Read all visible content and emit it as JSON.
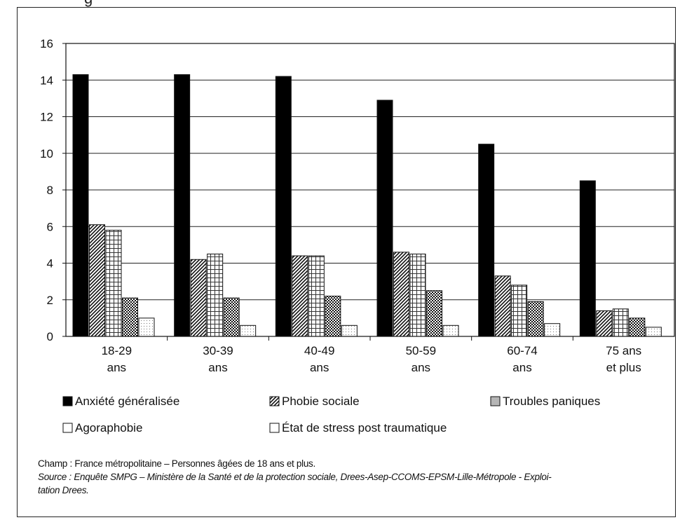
{
  "chart_data": {
    "type": "bar",
    "categories": [
      [
        "18-29",
        "ans"
      ],
      [
        "30-39",
        "ans"
      ],
      [
        "40-49",
        "ans"
      ],
      [
        "50-59",
        "ans"
      ],
      [
        "60-74",
        "ans"
      ],
      [
        "75 ans",
        "et plus"
      ]
    ],
    "series": [
      {
        "name": "Anxiété généralisée",
        "values": [
          14.3,
          14.3,
          14.2,
          12.9,
          10.5,
          8.5
        ],
        "pattern": "solid-black"
      },
      {
        "name": "Phobie sociale",
        "values": [
          6.1,
          4.2,
          4.4,
          4.6,
          3.3,
          1.4
        ],
        "pattern": "diagonal-hatch"
      },
      {
        "name": "Agoraphobie",
        "values": [
          5.8,
          4.5,
          4.4,
          4.5,
          2.8,
          1.5
        ],
        "pattern": "grid-lines"
      },
      {
        "name": "Troubles paniques",
        "values": [
          2.1,
          2.1,
          2.2,
          2.5,
          1.9,
          1.0
        ],
        "pattern": "checker"
      },
      {
        "name": "État de stress post traumatique",
        "values": [
          1.0,
          0.6,
          0.6,
          0.6,
          0.7,
          0.5
        ],
        "pattern": "dotted"
      }
    ],
    "yticks": [
      0,
      2,
      4,
      6,
      8,
      10,
      12,
      14,
      16
    ],
    "ylim": [
      0,
      16
    ],
    "grid": true,
    "legend": [
      {
        "label": "Anxiété généralisée",
        "pattern": "solid-black"
      },
      {
        "label": "Phobie sociale",
        "pattern": "diagonal-hatch"
      },
      {
        "label": "Troubles paniques",
        "pattern": "light-gray"
      },
      {
        "label": "Agoraphobie",
        "pattern": "outline-white"
      },
      {
        "label": "État de stress post traumatique",
        "pattern": "outline-white"
      }
    ],
    "legend_placement": "bottom"
  },
  "notes": {
    "champ": "Champ : France métropolitaine – Personnes âgées de 18 ans et plus.",
    "source_line1": "Source : Enquête SMPG – Ministère de la Santé et de la protection sociale, Drees-Asep-CCOMS-EPSM-Lille-Métropole - Exploi-",
    "source_line2": "tation Drees."
  },
  "header": {
    "partial_title": "g"
  }
}
